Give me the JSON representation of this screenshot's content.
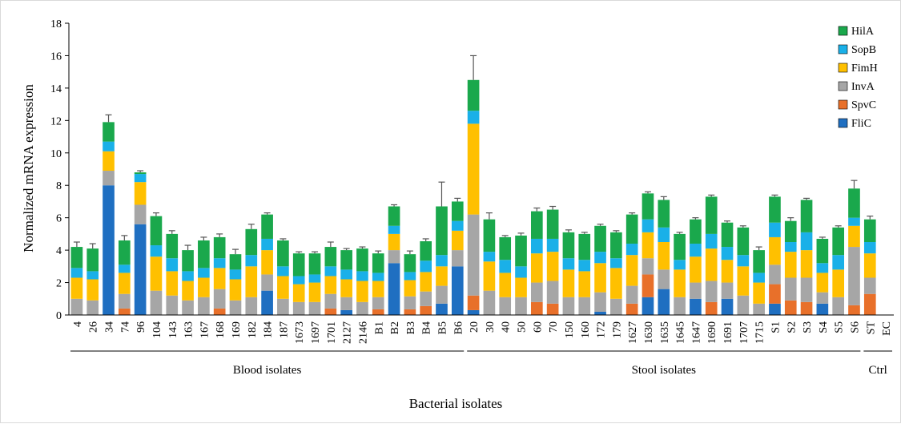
{
  "chart_data": {
    "type": "stacked bar",
    "ylabel": "Normalized mRNA expression",
    "xlabel": "Bacterial isolates",
    "ylim": [
      0,
      18
    ],
    "yticks": [
      0,
      2,
      4,
      6,
      8,
      10,
      12,
      14,
      16,
      18
    ],
    "grid": false,
    "legend_position": "top-right",
    "categories": [
      "4",
      "26",
      "34",
      "74",
      "96",
      "104",
      "143",
      "163",
      "167",
      "168",
      "169",
      "182",
      "184",
      "187",
      "1673",
      "1697",
      "1701",
      "2127",
      "2146",
      "B1",
      "B2",
      "B3",
      "B4",
      "B5",
      "B6",
      "20",
      "30",
      "40",
      "50",
      "60",
      "70",
      "150",
      "160",
      "172",
      "179",
      "1627",
      "1630",
      "1635",
      "1645",
      "1647",
      "1690",
      "1691",
      "1707",
      "1715",
      "S1",
      "S2",
      "S3",
      "S4",
      "S5",
      "S6",
      "ST",
      "EC"
    ],
    "series": [
      {
        "name": "FliC",
        "color": "#1f6fc1",
        "values": [
          0,
          0,
          8.0,
          0,
          5.6,
          0,
          0,
          0,
          0,
          0,
          0,
          0,
          1.5,
          0,
          0,
          0,
          0,
          0.3,
          0,
          0,
          3.2,
          0,
          0,
          0.7,
          3.0,
          0.3,
          0,
          0,
          0,
          0,
          0,
          0,
          0,
          0.2,
          0,
          0,
          1.1,
          1.6,
          0,
          1.0,
          0,
          1.0,
          0,
          0,
          0.7,
          0,
          0,
          0.7,
          0,
          0,
          0,
          0
        ]
      },
      {
        "name": "SpvC",
        "color": "#e8702a",
        "values": [
          0,
          0,
          0,
          0.4,
          0,
          0,
          0,
          0,
          0,
          0.4,
          0,
          0,
          0,
          0,
          0,
          0,
          0.4,
          0,
          0,
          0.35,
          0,
          0.35,
          0.55,
          0,
          0,
          0.9,
          0,
          0,
          0,
          0.8,
          0.7,
          0,
          0,
          0,
          0,
          0.7,
          1.4,
          0,
          0,
          0,
          0.8,
          0,
          0,
          0,
          1.2,
          0.9,
          0.8,
          0,
          0,
          0.6,
          1.3,
          0
        ]
      },
      {
        "name": "InvA",
        "color": "#a6a6a6",
        "values": [
          1.0,
          0.9,
          0.9,
          0.9,
          1.2,
          1.5,
          1.2,
          0.9,
          1.1,
          1.2,
          0.9,
          1.1,
          1.0,
          1.0,
          0.8,
          0.8,
          0.9,
          0.8,
          0.8,
          0.75,
          0.8,
          0.8,
          0.9,
          1.1,
          1.0,
          5.0,
          1.5,
          1.1,
          1.1,
          1.2,
          1.4,
          1.1,
          1.1,
          1.2,
          1.0,
          1.1,
          1.0,
          1.2,
          1.1,
          1.0,
          1.3,
          1.0,
          1.2,
          0.7,
          1.2,
          1.4,
          1.5,
          0.7,
          1.1,
          3.6,
          1.0,
          0
        ]
      },
      {
        "name": "FimH",
        "color": "#ffc000",
        "values": [
          1.3,
          1.3,
          1.2,
          1.3,
          1.4,
          2.1,
          1.5,
          1.2,
          1.2,
          1.3,
          1.3,
          1.9,
          1.5,
          1.4,
          1.1,
          1.2,
          1.1,
          1.1,
          1.3,
          1.0,
          1.0,
          1.0,
          1.2,
          1.2,
          1.2,
          5.6,
          1.8,
          1.5,
          1.2,
          1.8,
          1.8,
          1.7,
          1.6,
          1.8,
          1.9,
          1.9,
          1.6,
          1.7,
          1.7,
          1.6,
          2.0,
          1.4,
          1.8,
          1.3,
          1.7,
          1.6,
          1.7,
          1.2,
          1.7,
          1.3,
          1.5,
          0
        ]
      },
      {
        "name": "SopB",
        "color": "#1ab0e8",
        "values": [
          0.6,
          0.5,
          0.6,
          0.5,
          0.5,
          0.7,
          0.8,
          0.6,
          0.6,
          0.6,
          0.6,
          0.7,
          0.7,
          0.6,
          0.5,
          0.5,
          0.6,
          0.6,
          0.6,
          0.5,
          0.5,
          0.5,
          0.7,
          0.7,
          0.6,
          0.8,
          0.6,
          0.8,
          0.7,
          0.9,
          0.8,
          0.7,
          0.7,
          0.7,
          0.6,
          0.7,
          0.8,
          0.9,
          0.6,
          0.8,
          0.9,
          0.8,
          0.7,
          0.6,
          0.9,
          0.6,
          1.1,
          0.6,
          0.9,
          0.5,
          0.7,
          0
        ]
      },
      {
        "name": "HilA",
        "color": "#1aa84c",
        "values": [
          1.3,
          1.4,
          1.2,
          1.5,
          0.1,
          1.8,
          1.5,
          1.3,
          1.7,
          1.3,
          0.95,
          1.6,
          1.5,
          1.6,
          1.4,
          1.3,
          1.2,
          1.2,
          1.4,
          1.2,
          1.2,
          1.1,
          1.2,
          3.0,
          1.2,
          1.9,
          2.0,
          1.4,
          1.9,
          1.7,
          1.8,
          1.6,
          1.6,
          1.6,
          1.6,
          1.8,
          1.6,
          1.7,
          1.6,
          1.5,
          2.3,
          1.5,
          1.7,
          1.4,
          1.6,
          1.3,
          2.0,
          1.5,
          1.7,
          1.8,
          1.4,
          0
        ]
      }
    ],
    "error_bars_top": [
      0.3,
      0.3,
      0.45,
      0.3,
      0.1,
      0.2,
      0.2,
      0.3,
      0.2,
      0.2,
      0.3,
      0.3,
      0.1,
      0.1,
      0.1,
      0.1,
      0.3,
      0.1,
      0.1,
      0.15,
      0.1,
      0.2,
      0.15,
      1.5,
      0.2,
      1.5,
      0.4,
      0.1,
      0.15,
      0.2,
      0.2,
      0.15,
      0.1,
      0.1,
      0.1,
      0.1,
      0.1,
      0.2,
      0.1,
      0.1,
      0.1,
      0.1,
      0.1,
      0.2,
      0.1,
      0.2,
      0.1,
      0.1,
      0.1,
      0.5,
      0.2,
      0
    ],
    "groups": [
      {
        "label": "Blood isolates",
        "from": "4",
        "to": "B6"
      },
      {
        "label": "Stool isolates",
        "from": "20",
        "to": "S6"
      },
      {
        "label": "Ctrl",
        "from": "ST",
        "to": "EC"
      }
    ]
  }
}
